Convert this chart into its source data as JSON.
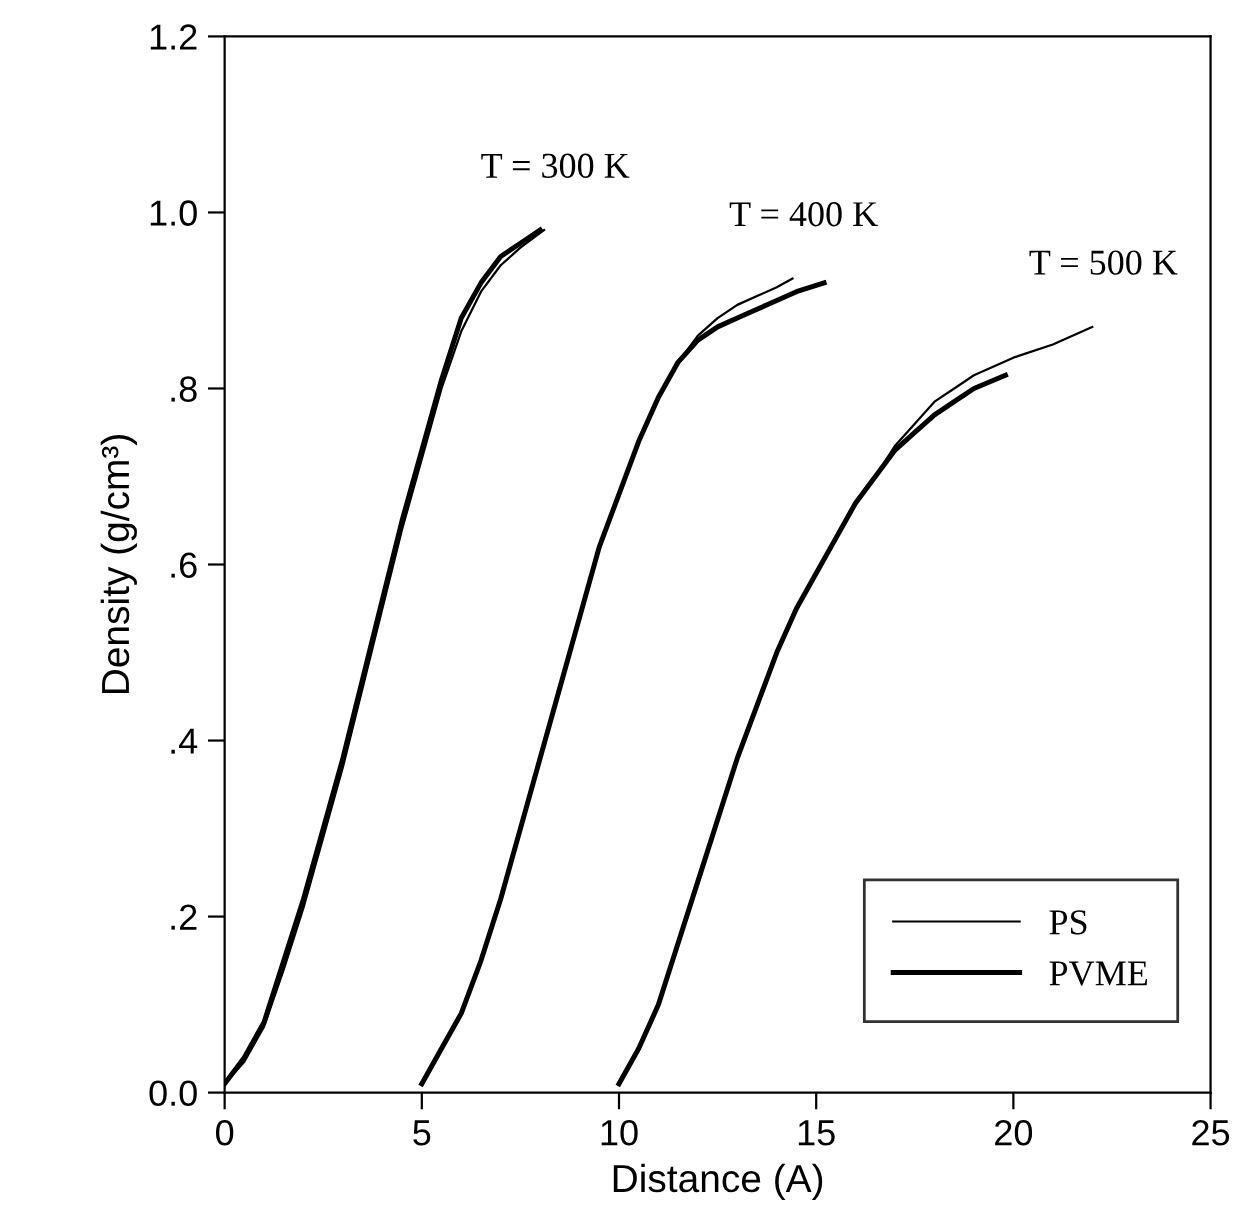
{
  "chart_data": {
    "type": "line",
    "xlabel": "Distance (A)",
    "ylabel": "Density (g/cm³)",
    "xlim": [
      0,
      25
    ],
    "xticks": [
      0,
      5,
      10,
      15,
      20,
      25
    ],
    "ylim": [
      0,
      1.2
    ],
    "yticks": [
      {
        "value": 0,
        "label": "0.0"
      },
      {
        "value": 0.2,
        "label": ".2"
      },
      {
        "value": 0.4,
        "label": ".4"
      },
      {
        "value": 0.6,
        "label": ".6"
      },
      {
        "value": 0.8,
        "label": ".8"
      },
      {
        "value": 1.0,
        "label": "1.0"
      },
      {
        "value": 1.2,
        "label": "1.2"
      }
    ],
    "grid": false,
    "legend": "bottom right",
    "marker": "none",
    "line_style": "solid",
    "annotations": [
      "T = 300 K",
      "T = 400 K",
      "T = 500 K"
    ],
    "series": [
      {
        "name": "PS",
        "color": "#000000",
        "x": [
          0,
          0.5,
          1.0,
          1.5,
          2,
          2.5,
          3,
          3.5,
          4,
          4.5,
          5,
          5.5,
          6,
          6.5,
          7,
          7.5,
          8.1
        ],
        "values": [
          0.01,
          0.035,
          0.075,
          0.14,
          0.21,
          0.29,
          0.37,
          0.46,
          0.55,
          0.64,
          0.72,
          0.8,
          0.865,
          0.91,
          0.94,
          0.96,
          0.98
        ]
      },
      {
        "name": "PVME",
        "color": "#000000",
        "x": [
          0,
          0.5,
          1.0,
          1.5,
          2,
          2.5,
          3,
          3.5,
          4,
          4.5,
          5,
          5.5,
          6,
          6.5,
          7,
          7.5,
          8
        ],
        "values": [
          0.01,
          0.04,
          0.08,
          0.15,
          0.22,
          0.3,
          0.38,
          0.47,
          0.56,
          0.65,
          0.73,
          0.81,
          0.88,
          0.92,
          0.95,
          0.965,
          0.98
        ]
      },
      {
        "color": "#000000",
        "x": [
          5,
          5.5,
          6,
          6.5,
          7,
          7.5,
          8,
          8.5,
          9,
          9.5,
          10,
          10.5,
          11,
          11.5,
          12,
          12.5,
          13,
          13.5,
          14,
          14.4
        ],
        "values": [
          0.01,
          0.05,
          0.09,
          0.15,
          0.22,
          0.3,
          0.38,
          0.46,
          0.54,
          0.62,
          0.68,
          0.74,
          0.79,
          0.83,
          0.86,
          0.88,
          0.895,
          0.905,
          0.915,
          0.925
        ]
      },
      {
        "color": "#000000",
        "x": [
          5,
          5.5,
          6,
          6.5,
          7,
          7.5,
          8,
          8.5,
          9,
          9.5,
          10,
          10.5,
          11,
          11.5,
          12,
          12.5,
          13,
          13.5,
          14,
          14.5,
          15.2
        ],
        "values": [
          0.01,
          0.05,
          0.09,
          0.15,
          0.22,
          0.3,
          0.38,
          0.46,
          0.54,
          0.62,
          0.68,
          0.74,
          0.79,
          0.83,
          0.855,
          0.87,
          0.88,
          0.89,
          0.9,
          0.91,
          0.92
        ]
      },
      {
        "color": "#000000",
        "x": [
          10,
          10.5,
          11,
          11.5,
          12,
          12.5,
          13,
          13.5,
          14,
          14.5,
          15,
          15.5,
          16,
          16.5,
          17,
          17.5,
          18,
          18.5,
          19,
          20,
          21,
          22
        ],
        "values": [
          0.01,
          0.05,
          0.1,
          0.17,
          0.24,
          0.31,
          0.38,
          0.44,
          0.5,
          0.55,
          0.59,
          0.63,
          0.67,
          0.7,
          0.735,
          0.76,
          0.785,
          0.8,
          0.815,
          0.835,
          0.85,
          0.87
        ]
      },
      {
        "color": "#000000",
        "x": [
          10,
          10.5,
          11,
          11.5,
          12,
          12.5,
          13,
          13.5,
          14,
          14.5,
          15,
          15.5,
          16,
          16.5,
          17,
          17.5,
          18,
          18.5,
          19,
          19.8
        ],
        "values": [
          0.01,
          0.05,
          0.1,
          0.17,
          0.24,
          0.31,
          0.38,
          0.44,
          0.5,
          0.55,
          0.59,
          0.63,
          0.67,
          0.7,
          0.73,
          0.75,
          0.77,
          0.785,
          0.8,
          0.815
        ]
      }
    ]
  }
}
